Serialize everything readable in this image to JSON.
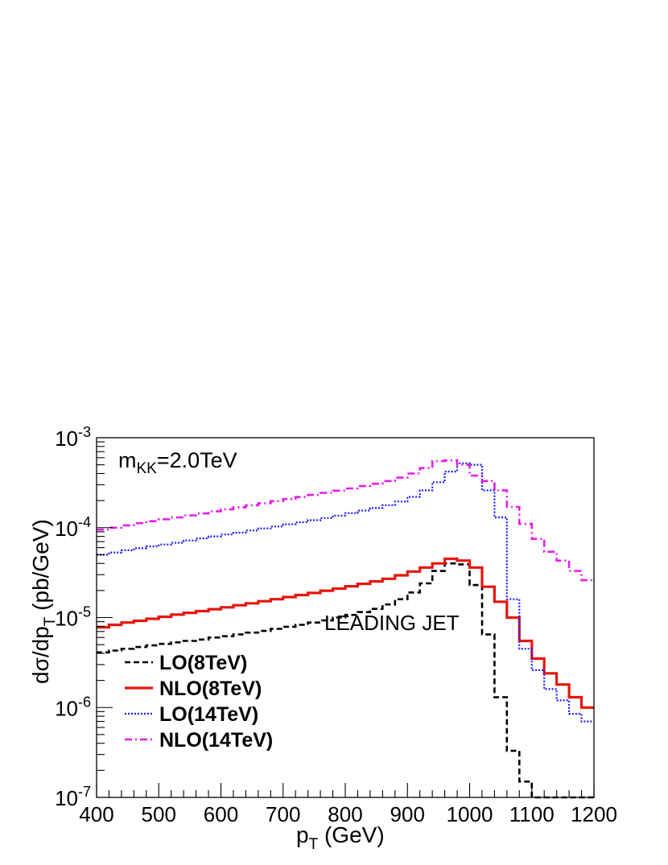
{
  "chart_data": {
    "type": "line",
    "style": "step histogram",
    "xlabel": {
      "main": "p",
      "sub": "T",
      "rest": " (GeV)"
    },
    "ylabel": {
      "pre": "dσ/dp",
      "sub": "T",
      "post": " (pb/GeV)"
    },
    "xlim": [
      400,
      1200
    ],
    "ylim": [
      1e-07,
      0.001
    ],
    "yscale": "log",
    "x_ticks": [
      400,
      500,
      600,
      700,
      800,
      900,
      1000,
      1100,
      1200
    ],
    "x_tick_labels": [
      "400",
      "500",
      "600",
      "700",
      "800",
      "900",
      "1000",
      "1100",
      "1200"
    ],
    "y_ticks": [
      {
        "value": 1e-07,
        "base": "10",
        "exp": "-7"
      },
      {
        "value": 1e-06,
        "base": "10",
        "exp": "-6"
      },
      {
        "value": 1e-05,
        "base": "10",
        "exp": "-5"
      },
      {
        "value": 0.0001,
        "base": "10",
        "exp": "-4"
      },
      {
        "value": 0.001,
        "base": "10",
        "exp": "-3"
      }
    ],
    "grid": false,
    "legend_position": "bottom-left",
    "annotations": {
      "mass": {
        "main": "m",
        "sub": "KK",
        "rest": "=2.0TeV"
      },
      "region": "LEADING JET"
    },
    "bin_width": 20,
    "bin_edges_start": 400,
    "series": [
      {
        "name": "LO(8TeV)",
        "color": "#000000",
        "dash": "dashed",
        "values": [
          4.1e-06,
          4.3e-06,
          4.5e-06,
          4.7e-06,
          4.9e-06,
          5.1e-06,
          5.3e-06,
          5.5e-06,
          5.7e-06,
          6e-06,
          6.2e-06,
          6.5e-06,
          6.8e-06,
          7.1e-06,
          7.5e-06,
          7.9e-06,
          8.3e-06,
          8.8e-06,
          9.3e-06,
          1e-05,
          1.07e-05,
          1.15e-05,
          1.25e-05,
          1.4e-05,
          1.6e-05,
          1.9e-05,
          2.4e-05,
          3.3e-05,
          4e-05,
          3.9e-05,
          2.3e-05,
          6.5e-06,
          1.3e-06,
          3.3e-07,
          1.5e-07,
          1e-07,
          1e-07,
          1e-07,
          1e-07,
          1e-07
        ]
      },
      {
        "name": "NLO(8TeV)",
        "color": "#e8160c",
        "dash": "solid",
        "values": [
          7.8e-06,
          8.3e-06,
          8.8e-06,
          9.2e-06,
          9.7e-06,
          1.02e-05,
          1.08e-05,
          1.13e-05,
          1.18e-05,
          1.24e-05,
          1.3e-05,
          1.37e-05,
          1.44e-05,
          1.52e-05,
          1.6e-05,
          1.69e-05,
          1.78e-05,
          1.88e-05,
          1.99e-05,
          2.1e-05,
          2.23e-05,
          2.37e-05,
          2.53e-05,
          2.7e-05,
          2.95e-05,
          3.25e-05,
          3.6e-05,
          4e-05,
          4.5e-05,
          4.3e-05,
          3.6e-05,
          2.2e-05,
          1.5e-05,
          1e-05,
          5.5e-06,
          3.5e-06,
          2.4e-06,
          1.8e-06,
          1.3e-06,
          1e-06
        ]
      },
      {
        "name": "LO(14TeV)",
        "color": "#1c1cff",
        "dash": "dotted",
        "values": [
          5e-05,
          5.3e-05,
          5.6e-05,
          5.9e-05,
          6.2e-05,
          6.5e-05,
          6.8e-05,
          7.2e-05,
          7.6e-05,
          8e-05,
          8.4e-05,
          8.8e-05,
          9.3e-05,
          9.8e-05,
          0.000103,
          0.000109,
          0.000115,
          0.000121,
          0.000128,
          0.000136,
          0.000145,
          0.000155,
          0.000165,
          0.000178,
          0.000195,
          0.00022,
          0.00026,
          0.00032,
          0.00042,
          0.00052,
          0.0005,
          0.00026,
          0.00013,
          1.6e-05,
          4.5e-06,
          2.6e-06,
          1.6e-06,
          1.2e-06,
          8.5e-07,
          7e-07
        ]
      },
      {
        "name": "NLO(14TeV)",
        "color": "#e81ce8",
        "dash": "dashdot",
        "values": [
          9.5e-05,
          0.0001,
          0.000106,
          0.000112,
          0.000118,
          0.000124,
          0.00013,
          0.000137,
          0.000144,
          0.000152,
          0.00016,
          0.000168,
          0.000177,
          0.000187,
          0.000197,
          0.000208,
          0.000219,
          0.000231,
          0.000244,
          0.000258,
          0.000273,
          0.00029,
          0.000308,
          0.00033,
          0.00036,
          0.0004,
          0.00046,
          0.00055,
          0.00056,
          0.0005,
          0.00038,
          0.00033,
          0.00026,
          0.00017,
          0.00011,
          7.5e-05,
          5.4e-05,
          4.3e-05,
          3.3e-05,
          2.6e-05
        ]
      }
    ]
  }
}
